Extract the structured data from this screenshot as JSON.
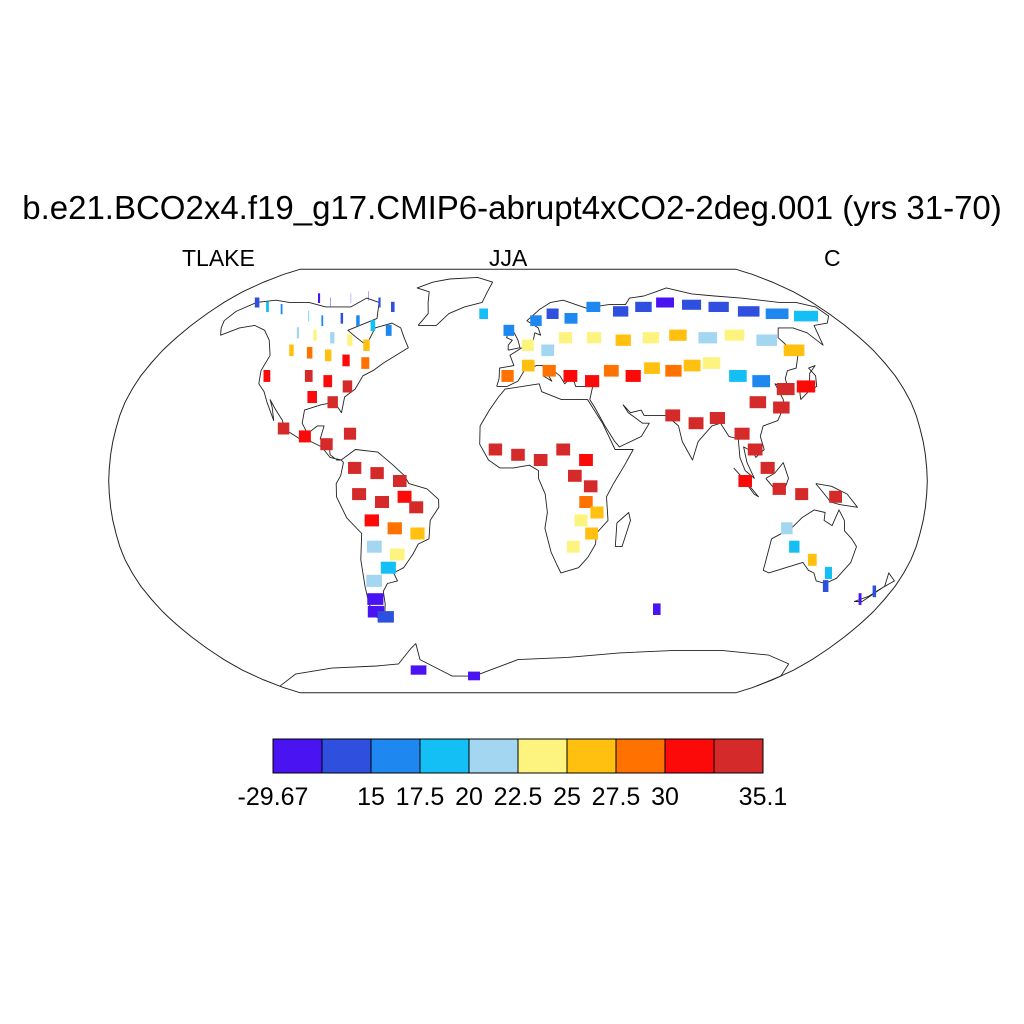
{
  "title": "b.e21.BCO2x4.f19_g17.CMIP6-abrupt4xCO2-2deg.001 (yrs 31-70)",
  "left_label": "TLAKE",
  "center_label": "JJA",
  "right_label": "C",
  "colorbar": {
    "colors": [
      "#4a14f2",
      "#2f4fdf",
      "#1e88f0",
      "#14bff5",
      "#a3d6f0",
      "#fdf47f",
      "#ffc00f",
      "#ff7200",
      "#fc0a0a",
      "#d42a2a"
    ],
    "labels": [
      {
        "text": "-29.67",
        "index": 0
      },
      {
        "text": "15",
        "index": 2
      },
      {
        "text": "17.5",
        "index": 3
      },
      {
        "text": "20",
        "index": 4
      },
      {
        "text": "22.5",
        "index": 5
      },
      {
        "text": "25",
        "index": 6
      },
      {
        "text": "27.5",
        "index": 7
      },
      {
        "text": "30",
        "index": 8
      },
      {
        "text": "35.1",
        "index": 10
      }
    ]
  },
  "chart_data": {
    "type": "heatmap",
    "projection": "robinson",
    "grid_spacing_deg": [
      2.5,
      1.9
    ],
    "cells": [
      {
        "lon": -160,
        "lat": 70,
        "bin": 1
      },
      {
        "lon": -150,
        "lat": 68,
        "bin": 3
      },
      {
        "lon": -140,
        "lat": 67,
        "bin": 2
      },
      {
        "lon": -125,
        "lat": 72,
        "bin": 0
      },
      {
        "lon": -115,
        "lat": 70,
        "bin": 1
      },
      {
        "lon": -105,
        "lat": 72,
        "bin": 0
      },
      {
        "lon": -95,
        "lat": 73,
        "bin": 0
      },
      {
        "lon": -85,
        "lat": 70,
        "bin": 1
      },
      {
        "lon": -75,
        "lat": 68,
        "bin": 1
      },
      {
        "lon": -120,
        "lat": 64,
        "bin": 3
      },
      {
        "lon": -110,
        "lat": 62,
        "bin": 2
      },
      {
        "lon": -100,
        "lat": 63,
        "bin": 1
      },
      {
        "lon": -90,
        "lat": 62,
        "bin": 2
      },
      {
        "lon": -80,
        "lat": 60,
        "bin": 3
      },
      {
        "lon": -70,
        "lat": 58,
        "bin": 2
      },
      {
        "lon": -118,
        "lat": 57,
        "bin": 4
      },
      {
        "lon": -108,
        "lat": 56,
        "bin": 5
      },
      {
        "lon": -98,
        "lat": 55,
        "bin": 4
      },
      {
        "lon": -88,
        "lat": 54,
        "bin": 5
      },
      {
        "lon": -78,
        "lat": 52,
        "bin": 6
      },
      {
        "lon": -115,
        "lat": 50,
        "bin": 6
      },
      {
        "lon": -105,
        "lat": 49,
        "bin": 7
      },
      {
        "lon": -95,
        "lat": 48,
        "bin": 6
      },
      {
        "lon": -85,
        "lat": 46,
        "bin": 8
      },
      {
        "lon": -75,
        "lat": 45,
        "bin": 7
      },
      {
        "lon": -120,
        "lat": 40,
        "bin": 8
      },
      {
        "lon": -100,
        "lat": 40,
        "bin": 9
      },
      {
        "lon": -90,
        "lat": 38,
        "bin": 8
      },
      {
        "lon": -80,
        "lat": 36,
        "bin": 9
      },
      {
        "lon": -95,
        "lat": 32,
        "bin": 8
      },
      {
        "lon": -85,
        "lat": 30,
        "bin": 9
      },
      {
        "lon": -105,
        "lat": 20,
        "bin": 9
      },
      {
        "lon": -95,
        "lat": 17,
        "bin": 8
      },
      {
        "lon": -85,
        "lat": 14,
        "bin": 9
      },
      {
        "lon": -75,
        "lat": 18,
        "bin": 9
      },
      {
        "lon": -72,
        "lat": 5,
        "bin": 9
      },
      {
        "lon": -62,
        "lat": 3,
        "bin": 9
      },
      {
        "lon": -52,
        "lat": 0,
        "bin": 9
      },
      {
        "lon": -70,
        "lat": -5,
        "bin": 9
      },
      {
        "lon": -60,
        "lat": -8,
        "bin": 9
      },
      {
        "lon": -50,
        "lat": -6,
        "bin": 8
      },
      {
        "lon": -45,
        "lat": -10,
        "bin": 9
      },
      {
        "lon": -65,
        "lat": -15,
        "bin": 8
      },
      {
        "lon": -55,
        "lat": -18,
        "bin": 7
      },
      {
        "lon": -45,
        "lat": -20,
        "bin": 6
      },
      {
        "lon": -65,
        "lat": -25,
        "bin": 4
      },
      {
        "lon": -55,
        "lat": -28,
        "bin": 5
      },
      {
        "lon": -60,
        "lat": -33,
        "bin": 3
      },
      {
        "lon": -68,
        "lat": -38,
        "bin": 4
      },
      {
        "lon": -70,
        "lat": -45,
        "bin": 0
      },
      {
        "lon": -72,
        "lat": -50,
        "bin": 0
      },
      {
        "lon": -68,
        "lat": -52,
        "bin": 1
      },
      {
        "lon": -20,
        "lat": 65,
        "bin": 3
      },
      {
        "lon": -5,
        "lat": 58,
        "bin": 2
      },
      {
        "lon": 10,
        "lat": 62,
        "bin": 2
      },
      {
        "lon": 20,
        "lat": 65,
        "bin": 1
      },
      {
        "lon": 30,
        "lat": 63,
        "bin": 2
      },
      {
        "lon": 45,
        "lat": 68,
        "bin": 2
      },
      {
        "lon": 60,
        "lat": 66,
        "bin": 1
      },
      {
        "lon": 75,
        "lat": 68,
        "bin": 1
      },
      {
        "lon": 90,
        "lat": 70,
        "bin": 0
      },
      {
        "lon": 105,
        "lat": 69,
        "bin": 1
      },
      {
        "lon": 120,
        "lat": 68,
        "bin": 1
      },
      {
        "lon": 135,
        "lat": 66,
        "bin": 1
      },
      {
        "lon": 150,
        "lat": 65,
        "bin": 2
      },
      {
        "lon": 165,
        "lat": 64,
        "bin": 3
      },
      {
        "lon": 5,
        "lat": 52,
        "bin": 5
      },
      {
        "lon": 15,
        "lat": 50,
        "bin": 4
      },
      {
        "lon": 25,
        "lat": 55,
        "bin": 5
      },
      {
        "lon": 40,
        "lat": 55,
        "bin": 5
      },
      {
        "lon": 55,
        "lat": 54,
        "bin": 6
      },
      {
        "lon": 70,
        "lat": 55,
        "bin": 5
      },
      {
        "lon": 85,
        "lat": 56,
        "bin": 6
      },
      {
        "lon": 100,
        "lat": 55,
        "bin": 4
      },
      {
        "lon": 115,
        "lat": 56,
        "bin": 5
      },
      {
        "lon": 130,
        "lat": 54,
        "bin": 4
      },
      {
        "lon": 140,
        "lat": 50,
        "bin": 6
      },
      {
        "lon": -5,
        "lat": 40,
        "bin": 7
      },
      {
        "lon": 5,
        "lat": 44,
        "bin": 6
      },
      {
        "lon": 15,
        "lat": 42,
        "bin": 7
      },
      {
        "lon": 25,
        "lat": 40,
        "bin": 8
      },
      {
        "lon": 35,
        "lat": 38,
        "bin": 8
      },
      {
        "lon": 45,
        "lat": 42,
        "bin": 7
      },
      {
        "lon": 55,
        "lat": 40,
        "bin": 8
      },
      {
        "lon": 65,
        "lat": 43,
        "bin": 6
      },
      {
        "lon": 75,
        "lat": 42,
        "bin": 7
      },
      {
        "lon": 85,
        "lat": 44,
        "bin": 6
      },
      {
        "lon": 95,
        "lat": 45,
        "bin": 5
      },
      {
        "lon": 105,
        "lat": 40,
        "bin": 3
      },
      {
        "lon": 115,
        "lat": 38,
        "bin": 2
      },
      {
        "lon": 125,
        "lat": 35,
        "bin": 9
      },
      {
        "lon": 135,
        "lat": 36,
        "bin": 8
      },
      {
        "lon": 110,
        "lat": 30,
        "bin": 9
      },
      {
        "lon": 120,
        "lat": 28,
        "bin": 9
      },
      {
        "lon": 70,
        "lat": 25,
        "bin": 9
      },
      {
        "lon": 80,
        "lat": 22,
        "bin": 9
      },
      {
        "lon": 90,
        "lat": 24,
        "bin": 9
      },
      {
        "lon": 100,
        "lat": 18,
        "bin": 9
      },
      {
        "lon": 105,
        "lat": 12,
        "bin": 9
      },
      {
        "lon": 110,
        "lat": 5,
        "bin": 9
      },
      {
        "lon": 100,
        "lat": 0,
        "bin": 8
      },
      {
        "lon": 115,
        "lat": -3,
        "bin": 9
      },
      {
        "lon": 125,
        "lat": -5,
        "bin": 9
      },
      {
        "lon": 140,
        "lat": -6,
        "bin": 9
      },
      {
        "lon": -10,
        "lat": 12,
        "bin": 9
      },
      {
        "lon": 0,
        "lat": 10,
        "bin": 9
      },
      {
        "lon": 10,
        "lat": 8,
        "bin": 9
      },
      {
        "lon": 20,
        "lat": 12,
        "bin": 9
      },
      {
        "lon": 30,
        "lat": 8,
        "bin": 8
      },
      {
        "lon": 25,
        "lat": 2,
        "bin": 9
      },
      {
        "lon": 32,
        "lat": -2,
        "bin": 9
      },
      {
        "lon": 30,
        "lat": -8,
        "bin": 7
      },
      {
        "lon": 35,
        "lat": -12,
        "bin": 6
      },
      {
        "lon": 28,
        "lat": -15,
        "bin": 5
      },
      {
        "lon": 33,
        "lat": -20,
        "bin": 6
      },
      {
        "lon": 25,
        "lat": -25,
        "bin": 5
      },
      {
        "lon": 120,
        "lat": -18,
        "bin": 4
      },
      {
        "lon": 125,
        "lat": -25,
        "bin": 3
      },
      {
        "lon": 135,
        "lat": -30,
        "bin": 6
      },
      {
        "lon": 145,
        "lat": -35,
        "bin": 3
      },
      {
        "lon": 147,
        "lat": -40,
        "bin": 1
      },
      {
        "lon": 172,
        "lat": -42,
        "bin": 1
      },
      {
        "lon": 168,
        "lat": -45,
        "bin": 0
      },
      {
        "lon": 70,
        "lat": -49,
        "bin": 0
      },
      {
        "lon": -65,
        "lat": -75,
        "bin": 0
      },
      {
        "lon": -30,
        "lat": -78,
        "bin": 0
      }
    ]
  }
}
